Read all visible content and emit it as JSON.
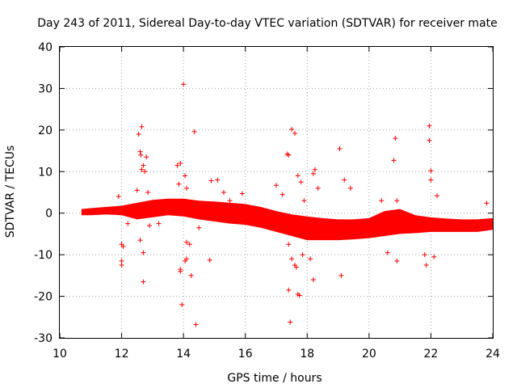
{
  "chart_data": {
    "type": "scatter",
    "title": "Day 243 of 2011, Sidereal Day-to-day VTEC variation (SDTVAR) for receiver mate",
    "xlabel": "GPS time / hours",
    "ylabel": "SDTVAR / TECUs",
    "xlim": [
      10,
      24
    ],
    "ylim": [
      -30,
      40
    ],
    "xticks": [
      "10",
      "12",
      "14",
      "16",
      "18",
      "20",
      "22",
      "24"
    ],
    "yticks": [
      "-30",
      "-20",
      "-10",
      "0",
      "10",
      "20",
      "30",
      "40"
    ],
    "grid": true,
    "marker": "+",
    "color": "#ff0000",
    "dense_band": {
      "x": [
        10.7,
        11.0,
        11.5,
        12.0,
        12.5,
        13.0,
        13.5,
        14.0,
        14.5,
        15.0,
        15.5,
        16.0,
        16.5,
        17.0,
        17.5,
        18.0,
        18.5,
        19.0,
        19.5,
        20.0,
        20.5,
        21.0,
        21.5,
        22.0,
        22.5,
        23.0,
        23.5,
        24.0
      ],
      "upper": [
        1.0,
        1.2,
        1.5,
        1.8,
        2.5,
        3.2,
        3.5,
        3.5,
        3.0,
        2.8,
        2.5,
        2.2,
        1.5,
        0.5,
        -0.3,
        -0.8,
        -1.2,
        -1.5,
        -1.5,
        -1.2,
        0.5,
        1.0,
        -0.5,
        -1.0,
        -1.3,
        -1.5,
        -1.5,
        -1.2
      ],
      "lower": [
        -0.5,
        -0.5,
        -0.3,
        -0.5,
        -1.5,
        -1.0,
        -0.5,
        -0.8,
        -1.5,
        -2.0,
        -2.5,
        -2.8,
        -3.5,
        -4.5,
        -5.5,
        -6.5,
        -6.5,
        -6.5,
        -6.3,
        -6.0,
        -5.5,
        -5.0,
        -4.8,
        -4.5,
        -4.5,
        -4.5,
        -4.5,
        -4.0
      ]
    },
    "points": [
      [
        11.9,
        4
      ],
      [
        12.0,
        -7.5
      ],
      [
        12.05,
        -8
      ],
      [
        12.0,
        -11.5
      ],
      [
        12.0,
        -12.5
      ],
      [
        12.2,
        -2.5
      ],
      [
        12.5,
        5.5
      ],
      [
        12.55,
        19
      ],
      [
        12.6,
        14.8
      ],
      [
        12.62,
        14
      ],
      [
        12.65,
        10.5
      ],
      [
        12.65,
        20.8
      ],
      [
        12.7,
        11.5
      ],
      [
        12.75,
        10
      ],
      [
        12.7,
        -9.5
      ],
      [
        12.7,
        -16.5
      ],
      [
        12.6,
        -6.5
      ],
      [
        12.8,
        13.5
      ],
      [
        12.85,
        5
      ],
      [
        12.9,
        -3
      ],
      [
        13.2,
        -2.5
      ],
      [
        13.8,
        11.5
      ],
      [
        13.85,
        7
      ],
      [
        13.9,
        12
      ],
      [
        13.9,
        -13.5
      ],
      [
        13.9,
        -14
      ],
      [
        13.95,
        -22
      ],
      [
        14.0,
        31
      ],
      [
        14.05,
        9
      ],
      [
        14.1,
        6
      ],
      [
        14.05,
        -11.5
      ],
      [
        14.1,
        -11
      ],
      [
        14.1,
        -7
      ],
      [
        14.2,
        -7.5
      ],
      [
        14.25,
        -15
      ],
      [
        14.35,
        19.6
      ],
      [
        14.4,
        -26.8
      ],
      [
        14.5,
        -3.5
      ],
      [
        14.85,
        -11.3
      ],
      [
        14.9,
        7.8
      ],
      [
        15.1,
        8
      ],
      [
        15.3,
        5
      ],
      [
        15.5,
        3
      ],
      [
        15.9,
        4.7
      ],
      [
        17.0,
        6.7
      ],
      [
        17.2,
        4.5
      ],
      [
        17.35,
        14.2
      ],
      [
        17.4,
        14
      ],
      [
        17.4,
        -7.5
      ],
      [
        17.4,
        -18.5
      ],
      [
        17.45,
        -26.2
      ],
      [
        17.5,
        20.2
      ],
      [
        17.6,
        19.2
      ],
      [
        17.5,
        -11
      ],
      [
        17.6,
        -12.5
      ],
      [
        17.65,
        -13
      ],
      [
        17.7,
        9
      ],
      [
        17.7,
        -19.5
      ],
      [
        17.75,
        -19.8
      ],
      [
        17.8,
        7.5
      ],
      [
        17.85,
        -10
      ],
      [
        17.9,
        3
      ],
      [
        18.1,
        -11
      ],
      [
        18.25,
        10.5
      ],
      [
        18.2,
        9.5
      ],
      [
        18.2,
        -16
      ],
      [
        18.35,
        6
      ],
      [
        18.5,
        -5
      ],
      [
        19.05,
        15.5
      ],
      [
        19.1,
        -15
      ],
      [
        19.2,
        8
      ],
      [
        19.4,
        6
      ],
      [
        20.4,
        3
      ],
      [
        20.6,
        -9.5
      ],
      [
        20.8,
        12.7
      ],
      [
        20.85,
        18
      ],
      [
        20.9,
        3
      ],
      [
        20.9,
        -11.5
      ],
      [
        21.8,
        -10
      ],
      [
        21.85,
        -12.5
      ],
      [
        21.95,
        21
      ],
      [
        21.95,
        17.5
      ],
      [
        22.0,
        10.2
      ],
      [
        22.0,
        8
      ],
      [
        22.1,
        -10.5
      ],
      [
        22.2,
        4.2
      ],
      [
        23.8,
        2.4
      ]
    ]
  }
}
